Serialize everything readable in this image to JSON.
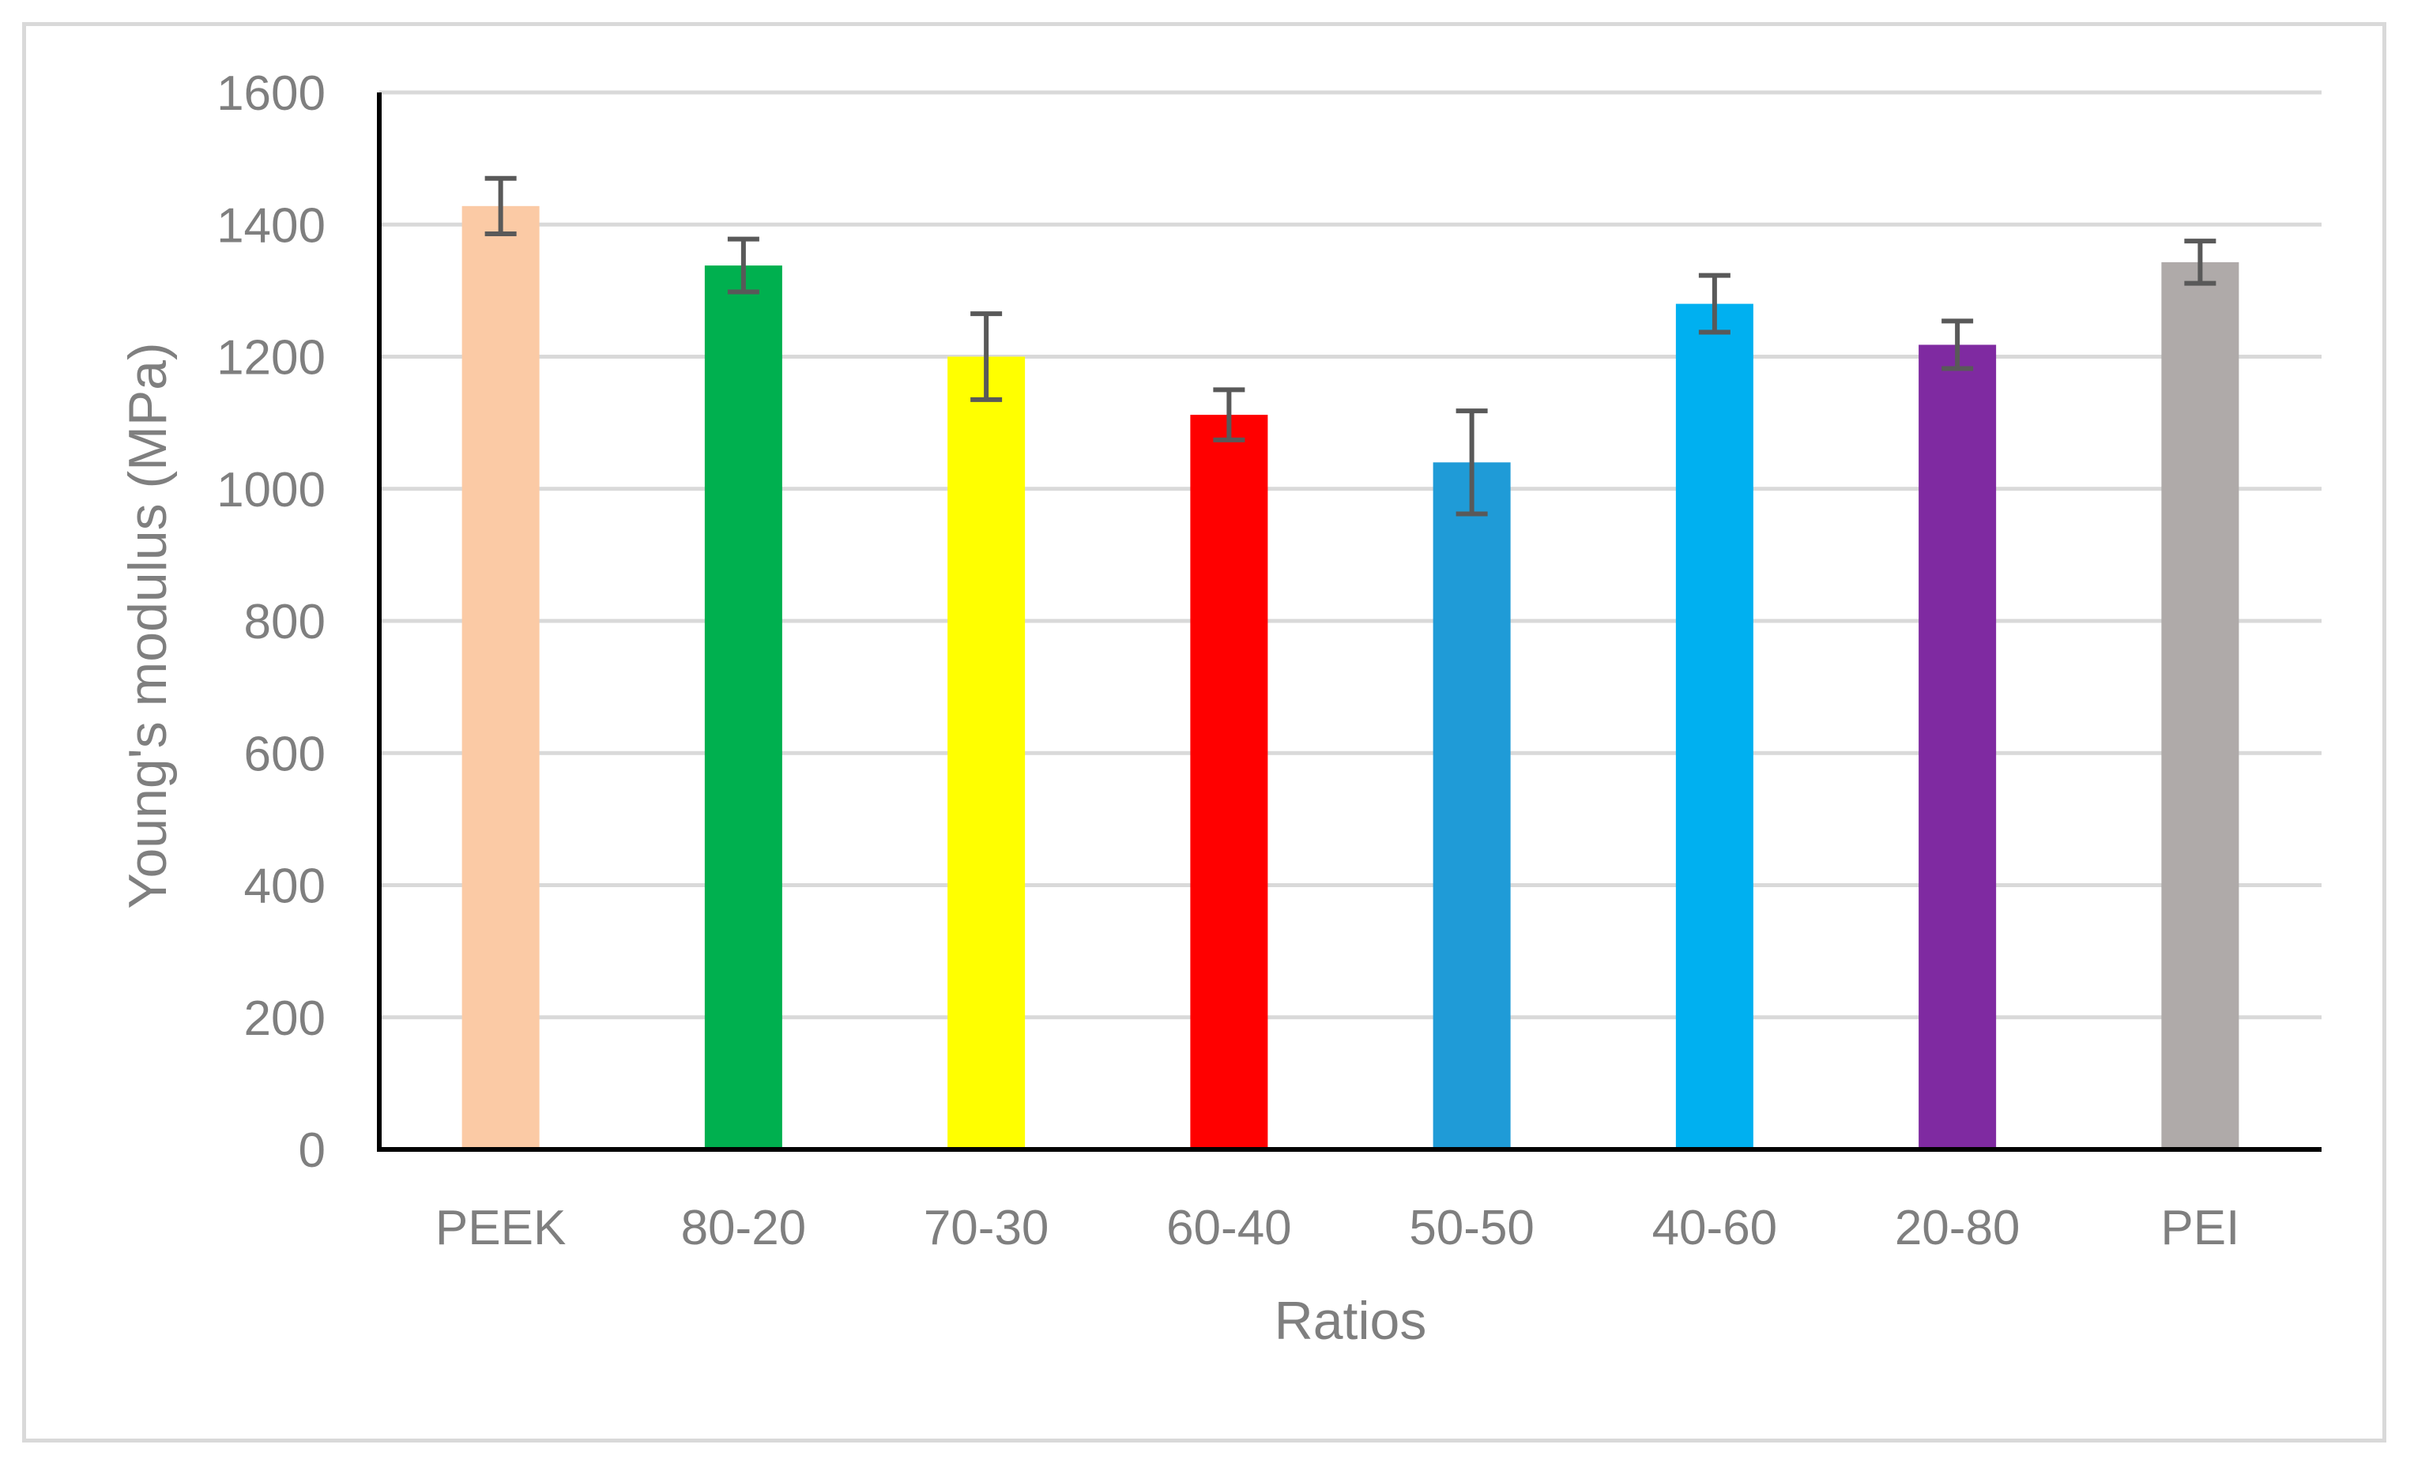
{
  "chart_data": {
    "type": "bar",
    "title": "",
    "xlabel": "Ratios",
    "ylabel": "Young's modulus (MPa)",
    "ylim": [
      0,
      1600
    ],
    "yticks": [
      "0",
      "200",
      "400",
      "600",
      "800",
      "1000",
      "1200",
      "1400",
      "1600"
    ],
    "grid": true,
    "legend": "none",
    "categories": [
      "PEEK",
      "80-20",
      "70-30",
      "60-40",
      "50-50",
      "40-60",
      "20-80",
      "PEI"
    ],
    "values": [
      1428,
      1338,
      1200,
      1112,
      1040,
      1280,
      1218,
      1343
    ],
    "errors": [
      42,
      40,
      65,
      38,
      78,
      43,
      36,
      32
    ],
    "colors": [
      "#fbcaa5",
      "#00b04f",
      "#ffff00",
      "#ff0000",
      "#1f9bd7",
      "#00b0f0",
      "#7f2aa1",
      "#afaaa9"
    ]
  }
}
